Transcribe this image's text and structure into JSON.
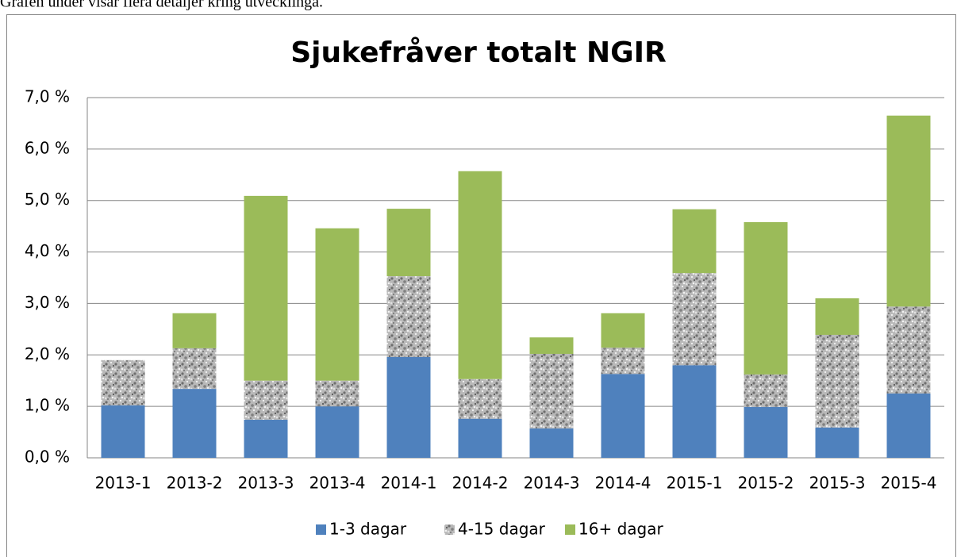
{
  "intro": "Grafen under visar flera detaljer kring utvecklinga.",
  "chart_data": {
    "type": "stacked_bar",
    "title": "Sjukefråver totalt NGIR",
    "categories": [
      "2013-1",
      "2013-2",
      "2013-3",
      "2013-4",
      "2014-1",
      "2014-2",
      "2014-3",
      "2014-4",
      "2015-1",
      "2015-2",
      "2015-3",
      "2015-4"
    ],
    "series": [
      {
        "name": "1-3 dagar",
        "color": "#4f81bd",
        "values": [
          1.02,
          1.34,
          0.74,
          1.0,
          1.96,
          0.76,
          0.57,
          1.63,
          1.8,
          0.99,
          0.59,
          1.25
        ]
      },
      {
        "name": "4-15 dagar",
        "color": "#a6a6a6",
        "pattern": "speckle",
        "values": [
          0.88,
          0.79,
          0.76,
          0.5,
          1.57,
          0.77,
          1.45,
          0.51,
          1.79,
          0.63,
          1.8,
          1.69
        ]
      },
      {
        "name": "16+ dagar",
        "color": "#9bbb59",
        "values": [
          0,
          0.68,
          3.59,
          2.96,
          1.31,
          4.04,
          0.32,
          0.67,
          1.24,
          2.96,
          0.71,
          3.71
        ]
      }
    ],
    "ylim": [
      0,
      7
    ],
    "yticks": [
      {
        "value": 0,
        "label": "0,0 %"
      },
      {
        "value": 1,
        "label": "1,0 %"
      },
      {
        "value": 2,
        "label": "2,0 %"
      },
      {
        "value": 3,
        "label": "3,0 %"
      },
      {
        "value": 4,
        "label": "4,0 %"
      },
      {
        "value": 5,
        "label": "5,0 %"
      },
      {
        "value": 6,
        "label": "6,0 %"
      },
      {
        "value": 7,
        "label": "7,0 %"
      }
    ],
    "grid": true,
    "legend": "bottom"
  }
}
